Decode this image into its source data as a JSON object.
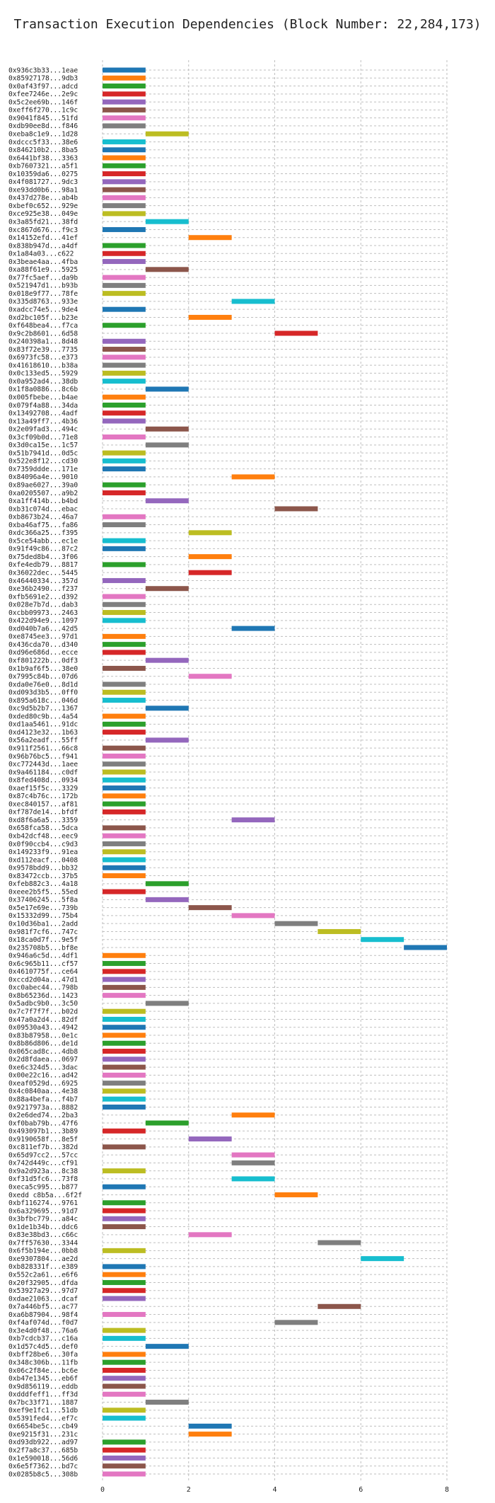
{
  "chart_data": {
    "type": "bar",
    "orientation": "horizontal",
    "title": "Transaction Execution Dependencies (Block Number: 22,284,173)",
    "xlabel": "",
    "ylabel": "",
    "xlim": [
      0,
      8
    ],
    "xticks": [
      0,
      2,
      4,
      6,
      8
    ],
    "grid": true,
    "palette": [
      "#1f77b4",
      "#ff7f0e",
      "#2ca02c",
      "#d62728",
      "#9467bd",
      "#8c564b",
      "#e377c2",
      "#7f7f7f",
      "#bcbd22",
      "#17becf"
    ],
    "transactions": [
      [
        "0x936c3b33...1eae",
        0,
        1
      ],
      [
        "0x85927178...9db3",
        0,
        1
      ],
      [
        "0x0af43f97...adcd",
        0,
        1
      ],
      [
        "0xfee7246e...2e9c",
        0,
        1
      ],
      [
        "0x5c2ee69b...146f",
        0,
        1
      ],
      [
        "0xeff6f270...1c9c",
        0,
        1
      ],
      [
        "0x9041f845...51fd",
        0,
        1
      ],
      [
        "0xdb90ee8d...f846",
        0,
        1
      ],
      [
        "0xeba8c1e9...1d28",
        1,
        2
      ],
      [
        "0xdccc5f33...38e6",
        0,
        1
      ],
      [
        "0x846210b2...8ba5",
        0,
        1
      ],
      [
        "0x6441bf38...3363",
        0,
        1
      ],
      [
        "0xb7607321...a5f1",
        0,
        1
      ],
      [
        "0x10359da6...0275",
        0,
        1
      ],
      [
        "0x4f081727...9dc3",
        0,
        1
      ],
      [
        "0xe93dd0b6...98a1",
        0,
        1
      ],
      [
        "0x437d278e...ab4b",
        0,
        1
      ],
      [
        "0xbef0c652...929e",
        0,
        1
      ],
      [
        "0xce925e38...049e",
        0,
        1
      ],
      [
        "0x3a85fd21...38fd",
        1,
        2
      ],
      [
        "0xc867d676...f9c3",
        0,
        1
      ],
      [
        "0x14152efd...41ef",
        2,
        3
      ],
      [
        "0x838b947d...a4df",
        0,
        1
      ],
      [
        "0x1a84a03...c622",
        0,
        1
      ],
      [
        "0x3beae4aa...4fba",
        0,
        1
      ],
      [
        "0xa88f61e9...5925",
        1,
        2
      ],
      [
        "0x77fc5aef...da9b",
        0,
        1
      ],
      [
        "0x521947d1...b93b",
        0,
        1
      ],
      [
        "0x018e9f77...78fe",
        0,
        1
      ],
      [
        "0x335d8763...933e",
        3,
        4
      ],
      [
        "0xadcc74e5...9de4",
        0,
        1
      ],
      [
        "0xd2bc105f...b23e",
        2,
        3
      ],
      [
        "0xf648bea4...f7ca",
        0,
        1
      ],
      [
        "0x9c2b8601...6d58",
        4,
        5
      ],
      [
        "0x240398a1...8d48",
        0,
        1
      ],
      [
        "0x83f72e39...7735",
        0,
        1
      ],
      [
        "0x6973fc58...e373",
        0,
        1
      ],
      [
        "0x41618610...b38a",
        0,
        1
      ],
      [
        "0x0c133ed5...5929",
        0,
        1
      ],
      [
        "0x0a952ad4...38db",
        0,
        1
      ],
      [
        "0x1f8a0886...8c6b",
        1,
        2
      ],
      [
        "0x005fbebe...b4ae",
        0,
        1
      ],
      [
        "0x079f4a88...34da",
        0,
        1
      ],
      [
        "0x13492708...4adf",
        0,
        1
      ],
      [
        "0x13a49ff7...4b36",
        0,
        1
      ],
      [
        "0x2e09fad3...494c",
        1,
        2
      ],
      [
        "0x3cf09b0d...71e8",
        0,
        1
      ],
      [
        "0x3d0ca15e...1c57",
        1,
        2
      ],
      [
        "0x51b7941d...0d5c",
        0,
        1
      ],
      [
        "0x522e8f12...cd30",
        0,
        1
      ],
      [
        "0x7359ddde...171e",
        0,
        1
      ],
      [
        "0x84096a4e...9010",
        3,
        4
      ],
      [
        "0x89ae6027...39a0",
        0,
        1
      ],
      [
        "0xa0205507...a9b2",
        0,
        1
      ],
      [
        "0xa1ff414b...b4bd",
        1,
        2
      ],
      [
        "0xb31c074d...ebac",
        4,
        5
      ],
      [
        "0xb8673b24...46a7",
        0,
        1
      ],
      [
        "0xba46af75...fa86",
        0,
        1
      ],
      [
        "0xdc366a25...f395",
        2,
        3
      ],
      [
        "0x5ce54abb...ec1e",
        0,
        1
      ],
      [
        "0x91f49c86...87c2",
        0,
        1
      ],
      [
        "0x75ded8b4...3f06",
        2,
        3
      ],
      [
        "0xfe4edb79...8817",
        0,
        1
      ],
      [
        "0x36022dec...5445",
        2,
        3
      ],
      [
        "0x46440334...357d",
        0,
        1
      ],
      [
        "0xe36b2490...f237",
        1,
        2
      ],
      [
        "0xfb5691e2...d392",
        0,
        1
      ],
      [
        "0x028e7b7d...dab3",
        0,
        1
      ],
      [
        "0xcbb09973...2463",
        0,
        1
      ],
      [
        "0x422d94e9...1097",
        0,
        1
      ],
      [
        "0xd040b7a6...42d5",
        3,
        4
      ],
      [
        "0xe8745ee3...97d1",
        0,
        1
      ],
      [
        "0x436cda70...d340",
        0,
        1
      ],
      [
        "0xd96e686d...ecce",
        0,
        1
      ],
      [
        "0xf801222b...0df3",
        1,
        2
      ],
      [
        "0x1b9af6f5...38e0",
        0,
        1
      ],
      [
        "0x7995c84b...07d6",
        2,
        3
      ],
      [
        "0xda0e76e0...8d1d",
        0,
        1
      ],
      [
        "0xd093d3b5...0ff0",
        0,
        1
      ],
      [
        "0x895a618c...046d",
        0,
        1
      ],
      [
        "0xc9d5b2b7...1367",
        1,
        2
      ],
      [
        "0xded80c9b...4a54",
        0,
        1
      ],
      [
        "0xd1aa5461...91dc",
        0,
        1
      ],
      [
        "0xd4123e32...1b63",
        0,
        1
      ],
      [
        "0x56a2eadf...55ff",
        1,
        2
      ],
      [
        "0x911f2561...66c8",
        0,
        1
      ],
      [
        "0x96b76bc5...f941",
        0,
        1
      ],
      [
        "0xc772443d...1aee",
        0,
        1
      ],
      [
        "0x9a461184...c0df",
        0,
        1
      ],
      [
        "0x8fed408d...0934",
        0,
        1
      ],
      [
        "0xaef15f5c...3329",
        0,
        1
      ],
      [
        "0x87c4b76c...172b",
        0,
        1
      ],
      [
        "0xec840157...af81",
        0,
        1
      ],
      [
        "0xf787de14...bfdf",
        0,
        1
      ],
      [
        "0xd8f6a6a5...3359",
        3,
        4
      ],
      [
        "0x658fca58...5dca",
        0,
        1
      ],
      [
        "0xb42dcf48...eec9",
        0,
        1
      ],
      [
        "0x0f90ccb4...c9d3",
        0,
        1
      ],
      [
        "0x149233f9...91ea",
        0,
        1
      ],
      [
        "0xd112eacf...0408",
        0,
        1
      ],
      [
        "0x9578bdd9...bb32",
        0,
        1
      ],
      [
        "0x83472ccb...37b5",
        0,
        1
      ],
      [
        "0xfeb882c3...4a18",
        1,
        2
      ],
      [
        "0xeee2b5f5...55ed",
        0,
        1
      ],
      [
        "0x37406245...5f8a",
        1,
        2
      ],
      [
        "0x5e17e69e...739b",
        2,
        3
      ],
      [
        "0x15332d99...75b4",
        3,
        4
      ],
      [
        "0x10d36ba1...2add",
        4,
        5
      ],
      [
        "0x981f7cf6...747c",
        5,
        6
      ],
      [
        "0x18ca0d7f...9e5f",
        6,
        7
      ],
      [
        "0x235708b5...bf8e",
        7,
        8
      ],
      [
        "0x946a6c5d...4df1",
        0,
        1
      ],
      [
        "0x6c965b11...cf57",
        0,
        1
      ],
      [
        "0x4610775f...ce64",
        0,
        1
      ],
      [
        "0xccd2d04a...47d1",
        0,
        1
      ],
      [
        "0xc0abec44...798b",
        0,
        1
      ],
      [
        "0x8b65236d...1423",
        0,
        1
      ],
      [
        "0x5adbc9b0...3c50",
        1,
        2
      ],
      [
        "0x7c7f7f7f...b02d",
        0,
        1
      ],
      [
        "0x47a0a2d4...82df",
        0,
        1
      ],
      [
        "0x09530a43...4942",
        0,
        1
      ],
      [
        "0x83b87958...0e1c",
        0,
        1
      ],
      [
        "0x8b86d806...de1d",
        0,
        1
      ],
      [
        "0x065cad8c...4db8",
        0,
        1
      ],
      [
        "0x2d8fdaea...0697",
        0,
        1
      ],
      [
        "0xe6c324d5...3dac",
        0,
        1
      ],
      [
        "0x00e22c16...ad42",
        0,
        1
      ],
      [
        "0xeaf0529d...6925",
        0,
        1
      ],
      [
        "0x4c0840aa...4e38",
        0,
        1
      ],
      [
        "0x88a4befa...f4b7",
        0,
        1
      ],
      [
        "0x9217973a...8882",
        0,
        1
      ],
      [
        "0x2e6ded74...2ba3",
        3,
        4
      ],
      [
        "0xf0bab79b...47f6",
        1,
        2
      ],
      [
        "0x493097b1...3b89",
        0,
        1
      ],
      [
        "0x9190658f...8e5f",
        2,
        3
      ],
      [
        "0xc811ef7b...382d",
        0,
        1
      ],
      [
        "0x65d97cc2...57cc",
        3,
        4
      ],
      [
        "0x742d449c...cf91",
        3,
        4
      ],
      [
        "0x9a2d923a...8c38",
        0,
        1
      ],
      [
        "0xf31d5fc6...73f8",
        3,
        4
      ],
      [
        "0xeca5c995...b877",
        0,
        1
      ],
      [
        "0xedd c8b5a...6f2f",
        4,
        5
      ],
      [
        "0xbf116274...9761",
        0,
        1
      ],
      [
        "0x6a329695...91d7",
        0,
        1
      ],
      [
        "0x3bfbc779...a84c",
        0,
        1
      ],
      [
        "0x1de1b34b...ddc6",
        0,
        1
      ],
      [
        "0x83e38bd3...c66c",
        2,
        3
      ],
      [
        "0x7ff57630...3344",
        5,
        6
      ],
      [
        "0x6f5b194e...0bb8",
        0,
        1
      ],
      [
        "0xe9307804...ae2d",
        6,
        7
      ],
      [
        "0xb828331f...e389",
        0,
        1
      ],
      [
        "0x552c2a61...e6f6",
        0,
        1
      ],
      [
        "0x20f32905...dfda",
        0,
        1
      ],
      [
        "0x53927a29...97d7",
        0,
        1
      ],
      [
        "0xdae21063...dcaf",
        0,
        1
      ],
      [
        "0x7a446bf5...ac77",
        5,
        6
      ],
      [
        "0xa6b87904...98f4",
        0,
        1
      ],
      [
        "0xf4af074d...f0d7",
        4,
        5
      ],
      [
        "0x3e4d0f48...76a6",
        0,
        1
      ],
      [
        "0xb7cdcb37...c16a",
        0,
        1
      ],
      [
        "0x1d57c4d5...def0",
        1,
        2
      ],
      [
        "0xbff28be6...30fa",
        0,
        1
      ],
      [
        "0x348c306b...11fb",
        0,
        1
      ],
      [
        "0x06c2f84e...bc6e",
        0,
        1
      ],
      [
        "0xb47e1345...eb6f",
        0,
        1
      ],
      [
        "0x9d856119...eddb",
        0,
        1
      ],
      [
        "0xdddfeff1...ff3d",
        0,
        1
      ],
      [
        "0x7bc33f71...1887",
        1,
        2
      ],
      [
        "0xef9e1fc1...51db",
        0,
        1
      ],
      [
        "0x5391fed4...ef7c",
        0,
        1
      ],
      [
        "0x6654be5c...cb49",
        2,
        3
      ],
      [
        "0xe9215f31...231c",
        2,
        3
      ],
      [
        "0xd93db922...ad97",
        0,
        1
      ],
      [
        "0x2f7a8c37...685b",
        0,
        1
      ],
      [
        "0x1e590018...56d6",
        0,
        1
      ],
      [
        "0x6e5f7362...bd7c",
        0,
        1
      ],
      [
        "0x0285b8c5...308b",
        0,
        1
      ]
    ]
  }
}
